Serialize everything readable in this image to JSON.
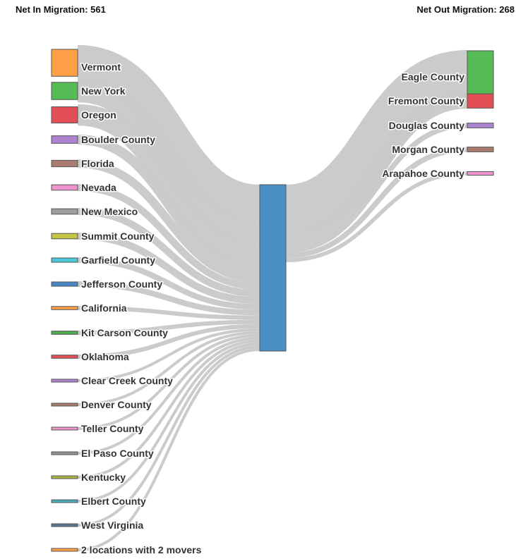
{
  "chart_data": {
    "type": "sankey",
    "title_in": "Net In Migration: 561",
    "title_out": "Net Out Migration: 268",
    "net_in": 561,
    "net_out": 268,
    "center_node": {
      "name": "",
      "color": "#4a90c4"
    },
    "sources": [
      {
        "name": "Vermont",
        "value": 25,
        "color": "#ff9a3c"
      },
      {
        "name": "New York",
        "value": 16,
        "color": "#4cb84c"
      },
      {
        "name": "Oregon",
        "value": 15,
        "color": "#e0474c"
      },
      {
        "name": "Boulder County",
        "value": 7,
        "color": "#a97ccc"
      },
      {
        "name": "Florida",
        "value": 6,
        "color": "#a37466"
      },
      {
        "name": "Nevada",
        "value": 5,
        "color": "#ee8ecb"
      },
      {
        "name": "New Mexico",
        "value": 5,
        "color": "#999999"
      },
      {
        "name": "Summit County",
        "value": 5,
        "color": "#c2c23a"
      },
      {
        "name": "Garfield County",
        "value": 4,
        "color": "#3fc6d8"
      },
      {
        "name": "Jefferson County",
        "value": 4,
        "color": "#3c7fc0"
      },
      {
        "name": "California",
        "value": 3,
        "color": "#ff9a3c"
      },
      {
        "name": "Kit Carson County",
        "value": 3,
        "color": "#46a846"
      },
      {
        "name": "Oklahoma",
        "value": 3,
        "color": "#e0474c"
      },
      {
        "name": "Clear Creek County",
        "value": 2,
        "color": "#a97ccc"
      },
      {
        "name": "Denver County",
        "value": 2,
        "color": "#a37466"
      },
      {
        "name": "Teller County",
        "value": 2,
        "color": "#ee8ecb"
      },
      {
        "name": "El Paso County",
        "value": 2,
        "color": "#8c8c8c"
      },
      {
        "name": "Kentucky",
        "value": 2,
        "color": "#a8b038"
      },
      {
        "name": "Elbert County",
        "value": 2,
        "color": "#3fa9b8"
      },
      {
        "name": "West Virginia",
        "value": 2,
        "color": "#4e6e8a"
      },
      {
        "name": "2 locations with 2 movers",
        "value": 2,
        "color": "#ff9a3c"
      }
    ],
    "targets": [
      {
        "name": "Eagle County",
        "value": 36,
        "color": "#4cb84c"
      },
      {
        "name": "Fremont County",
        "value": 12,
        "color": "#e0474c"
      },
      {
        "name": "Douglas County",
        "value": 4,
        "color": "#a97ccc"
      },
      {
        "name": "Morgan County",
        "value": 4,
        "color": "#a37466"
      },
      {
        "name": "Arapahoe County",
        "value": 3,
        "color": "#ee8ecb"
      }
    ]
  }
}
